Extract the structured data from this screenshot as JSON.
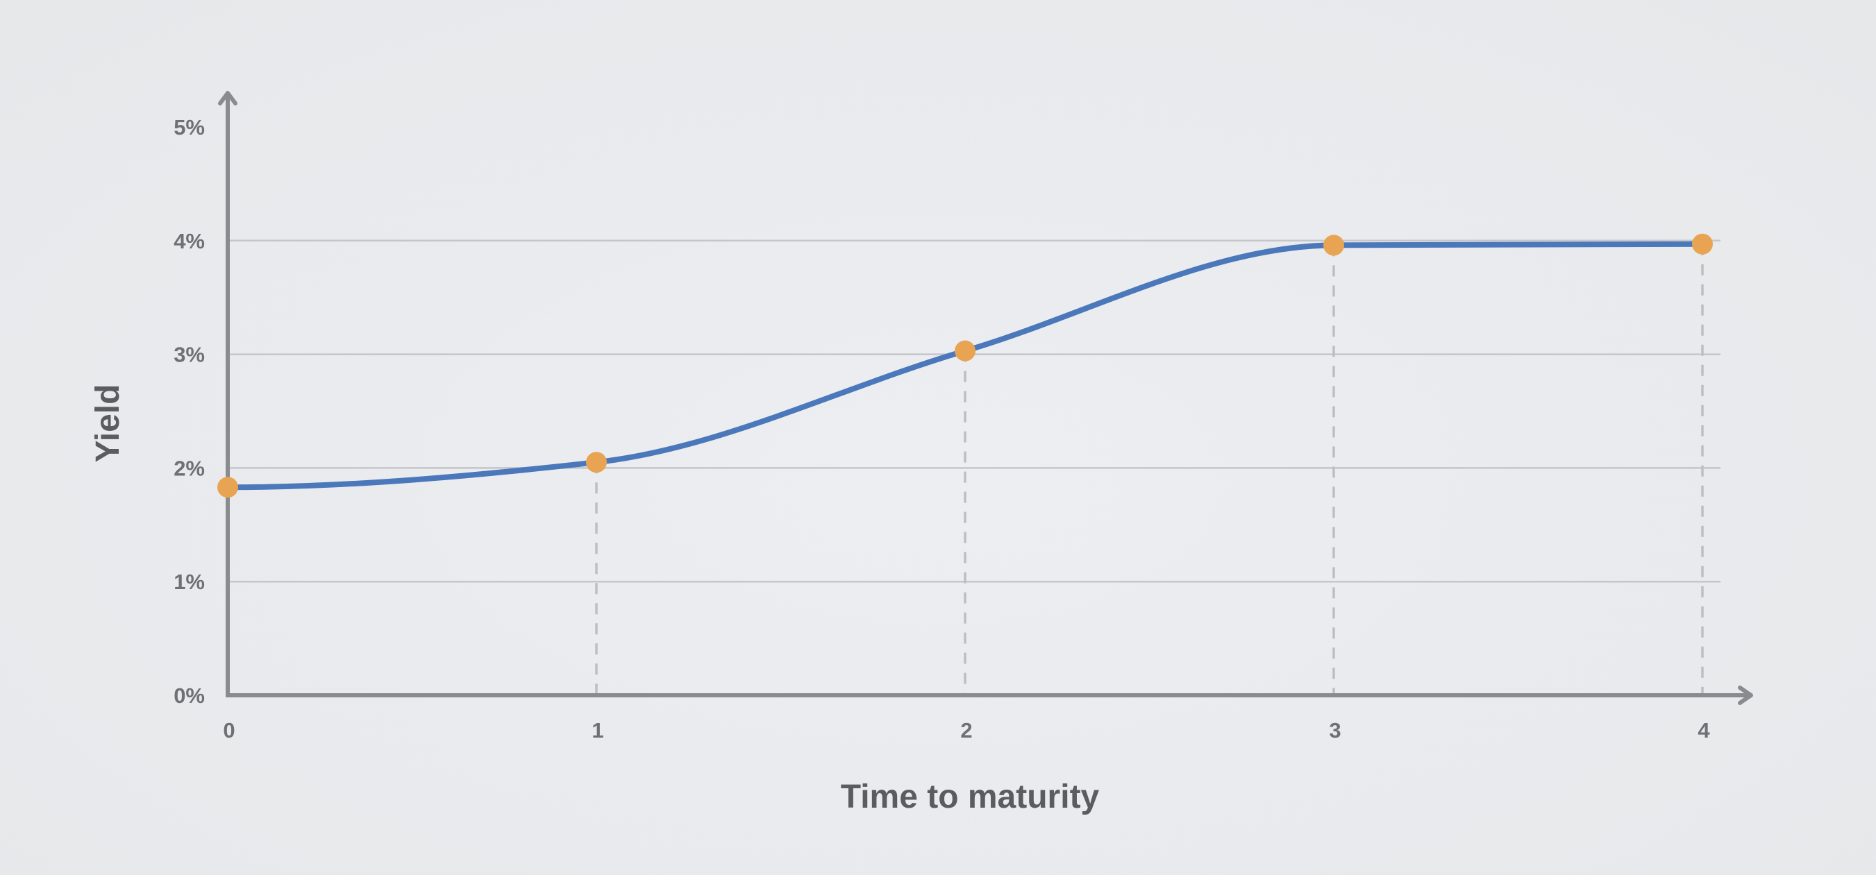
{
  "chart_data": {
    "type": "line",
    "title": "",
    "xlabel": "Time to maturity",
    "ylabel": "Yield",
    "x": [
      0,
      1,
      2,
      3,
      4
    ],
    "xlim": [
      0,
      4
    ],
    "x_ticks": [
      "0",
      "1",
      "2",
      "3",
      "4"
    ],
    "ylim": [
      0,
      5
    ],
    "y_ticks": [
      "0%",
      "1%",
      "2%",
      "3%",
      "4%",
      "5%"
    ],
    "grid": "horizontal",
    "legend": "none",
    "series": [
      {
        "values": [
          1.83,
          2.05,
          3.03,
          3.96,
          3.97
        ],
        "line_color": "#4a78ba",
        "marker_color": "#e8a452"
      }
    ],
    "drop_lines": true
  }
}
